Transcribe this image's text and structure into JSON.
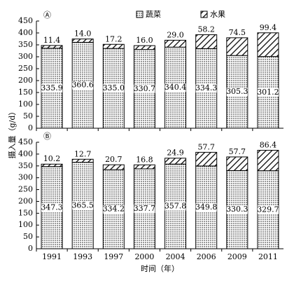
{
  "chart_data": [
    {
      "type": "bar",
      "stacked": true,
      "panel_label": "Ⓐ",
      "ylabel": "摄入量（g/d）",
      "legend": true,
      "ylim": [
        0,
        450
      ],
      "yticks": [
        0,
        50,
        100,
        150,
        200,
        250,
        300,
        350,
        400,
        450
      ],
      "series": [
        {
          "name": "蔬菜",
          "color": "#000000",
          "pattern": "dots",
          "values": [
            335.9,
            360.6,
            335.0,
            330.7,
            340.4,
            334.3,
            305.3,
            301.2
          ],
          "value_labels": [
            "335.9",
            "360.6",
            "335.0",
            "330.7",
            "340.4",
            "334.3",
            "305.3",
            "301.2"
          ]
        },
        {
          "name": "水果",
          "color": "#000000",
          "pattern": "hatch",
          "values": [
            11.4,
            14.0,
            17.2,
            16.0,
            29.0,
            58.2,
            74.5,
            99.4
          ],
          "value_labels": [
            "11.4",
            "14.0",
            "17.2",
            "16.0",
            "29.0",
            "58.2",
            "74.5",
            "99.4"
          ]
        }
      ]
    },
    {
      "type": "bar",
      "stacked": true,
      "panel_label": "Ⓑ",
      "xlabel": "时间（年）",
      "legend": false,
      "categories": [
        "1991",
        "1993",
        "1997",
        "2000",
        "2004",
        "2006",
        "2009",
        "2011"
      ],
      "ylim": [
        0,
        450
      ],
      "yticks": [
        0,
        50,
        100,
        150,
        200,
        250,
        300,
        350,
        400,
        450
      ],
      "series": [
        {
          "color": "#000000",
          "pattern": "dots",
          "values": [
            347.3,
            365.5,
            334.2,
            337.7,
            357.8,
            349.8,
            330.3,
            329.7
          ],
          "value_labels": [
            "347.3",
            "365.5",
            "334.2",
            "337.7",
            "357.8",
            "349.8",
            "330.3",
            "329.7"
          ]
        },
        {
          "color": "#000000",
          "pattern": "hatch",
          "values": [
            10.2,
            12.7,
            20.7,
            16.8,
            24.9,
            57.7,
            57.7,
            86.4
          ],
          "value_labels": [
            "10.2",
            "12.7",
            "20.7",
            "16.8",
            "24.9",
            "57.7",
            "57.7",
            "86.4"
          ]
        }
      ]
    }
  ]
}
